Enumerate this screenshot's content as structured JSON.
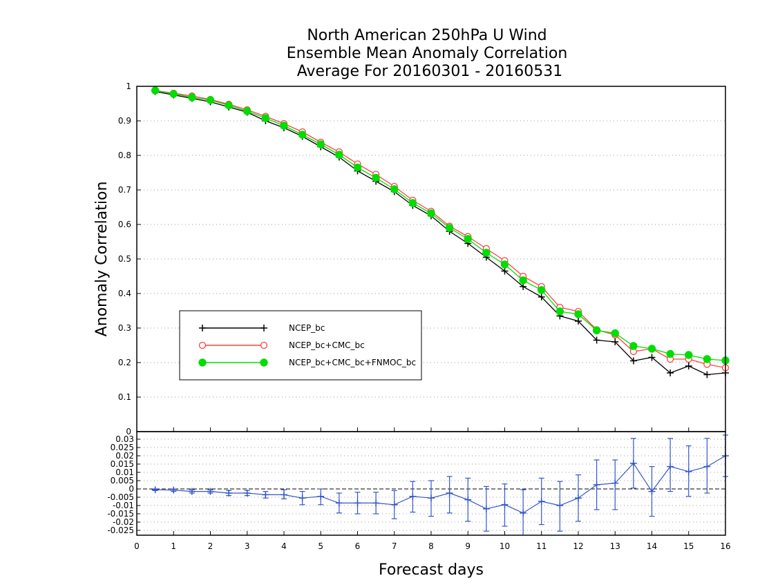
{
  "chart_data": [
    {
      "type": "line",
      "title": [
        "North American 250hPa U Wind",
        "Ensemble Mean Anomaly Correlation",
        "Average For 20160301 - 20160531"
      ],
      "ylabel": "Anomaly Correlation",
      "xlabel": "",
      "xlim": [
        0,
        16
      ],
      "ylim": [
        0,
        1
      ],
      "yticks": [
        "0",
        "0.1",
        "0.2",
        "0.3",
        "0.4",
        "0.5",
        "0.6",
        "0.7",
        "0.8",
        "0.9",
        "1"
      ],
      "grid": true,
      "legend_position": "left-lower",
      "x": [
        0.5,
        1,
        1.5,
        2,
        2.5,
        3,
        3.5,
        4,
        4.5,
        5,
        5.5,
        6,
        6.5,
        7,
        7.5,
        8,
        8.5,
        9,
        9.5,
        10,
        10.5,
        11,
        11.5,
        12,
        12.5,
        13,
        13.5,
        14,
        14.5,
        15,
        15.5,
        16
      ],
      "series": [
        {
          "name": "NCEP_bc",
          "color": "#000000",
          "marker": "plus",
          "values": [
            0.985,
            0.975,
            0.965,
            0.955,
            0.94,
            0.925,
            0.9,
            0.88,
            0.855,
            0.825,
            0.795,
            0.755,
            0.725,
            0.695,
            0.655,
            0.625,
            0.58,
            0.545,
            0.505,
            0.465,
            0.42,
            0.39,
            0.335,
            0.32,
            0.265,
            0.26,
            0.205,
            0.215,
            0.17,
            0.19,
            0.165,
            0.17
          ]
        },
        {
          "name": "NCEP_bc+CMC_bc",
          "color": "#ff4040",
          "marker": "open-circle",
          "values": [
            0.988,
            0.98,
            0.972,
            0.962,
            0.948,
            0.932,
            0.913,
            0.892,
            0.868,
            0.838,
            0.81,
            0.775,
            0.745,
            0.71,
            0.67,
            0.638,
            0.595,
            0.565,
            0.53,
            0.495,
            0.45,
            0.42,
            0.36,
            0.348,
            0.295,
            0.28,
            0.232,
            0.24,
            0.21,
            0.21,
            0.195,
            0.185
          ]
        },
        {
          "name": "NCEP_bc+CMC_bc+FNMOC_bc",
          "color": "#00dd00",
          "marker": "filled-circle",
          "values": [
            0.988,
            0.978,
            0.968,
            0.96,
            0.945,
            0.928,
            0.908,
            0.886,
            0.86,
            0.832,
            0.802,
            0.765,
            0.735,
            0.702,
            0.662,
            0.632,
            0.59,
            0.558,
            0.518,
            0.484,
            0.438,
            0.41,
            0.348,
            0.34,
            0.293,
            0.285,
            0.248,
            0.24,
            0.225,
            0.222,
            0.21,
            0.206
          ]
        }
      ]
    },
    {
      "type": "line",
      "title": "",
      "xlabel": "Forecast days",
      "ylabel": "",
      "xlim": [
        0,
        16
      ],
      "ylim": [
        -0.028,
        0.03
      ],
      "yticks": [
        "-0.025",
        "-0.02",
        "-0.015",
        "-0.01",
        "-0.005",
        "0",
        "0.005",
        "0.01",
        "0.015",
        "0.02",
        "0.025",
        "0.03"
      ],
      "xticks": [
        "0",
        "1",
        "2",
        "3",
        "4",
        "5",
        "6",
        "7",
        "8",
        "9",
        "10",
        "11",
        "12",
        "13",
        "14",
        "15",
        "16"
      ],
      "grid": true,
      "x": [
        0.5,
        1,
        1.5,
        2,
        2.5,
        3,
        3.5,
        4,
        4.5,
        5,
        5.5,
        6,
        6.5,
        7,
        7.5,
        8,
        8.5,
        9,
        9.5,
        10,
        10.5,
        11,
        11.5,
        12,
        12.5,
        13,
        13.5,
        14,
        14.5,
        15,
        15.5,
        16
      ],
      "series": [
        {
          "name": "",
          "color": "#3355cc",
          "marker": "plus",
          "values": [
            -0.0005,
            -0.0007,
            -0.0015,
            -0.0015,
            -0.0025,
            -0.0025,
            -0.0035,
            -0.0035,
            -0.0055,
            -0.0045,
            -0.0085,
            -0.0085,
            -0.0085,
            -0.0095,
            -0.0045,
            -0.0055,
            -0.0025,
            -0.0065,
            -0.012,
            -0.0095,
            -0.0145,
            -0.0075,
            -0.01,
            -0.0055,
            0.0025,
            0.0035,
            0.0155,
            -0.0015,
            0.0135,
            0.0105,
            0.0135,
            0.02
          ],
          "err_low": [
            -0.001,
            -0.0015,
            -0.0025,
            -0.0025,
            -0.004,
            -0.004,
            -0.0055,
            -0.006,
            -0.0095,
            -0.0095,
            -0.0145,
            -0.015,
            -0.015,
            -0.018,
            -0.014,
            -0.0165,
            -0.0145,
            -0.0195,
            -0.0255,
            -0.0225,
            -0.0285,
            -0.0215,
            -0.0255,
            -0.0195,
            -0.0125,
            -0.0125,
            0.0005,
            -0.0165,
            -0.0015,
            -0.0045,
            -0.0025,
            0.0075
          ],
          "err_high": [
            0,
            0,
            -0.0005,
            -0.0005,
            -0.001,
            -0.001,
            -0.0015,
            -0.0005,
            -0.0015,
            0,
            -0.0025,
            -0.002,
            -0.002,
            -0.001,
            0.0045,
            0.005,
            0.0075,
            0.0065,
            0.0015,
            0.003,
            -0.0005,
            0.0065,
            0.0045,
            0.0085,
            0.0175,
            0.0175,
            0.0305,
            0.0135,
            0.0305,
            0.026,
            0.0305,
            0.0325
          ]
        }
      ]
    }
  ]
}
